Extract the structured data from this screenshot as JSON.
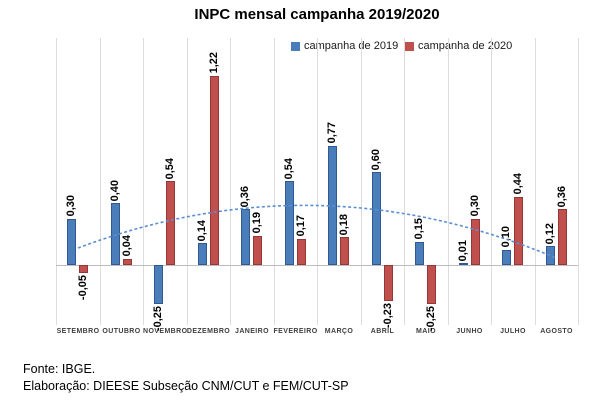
{
  "title": "INPC mensal campanha 2019/2020",
  "legend": [
    {
      "label": "campanha de 2019",
      "color": "#4a7ebb"
    },
    {
      "label": "campanha de 2020",
      "color": "#c0504d"
    }
  ],
  "footer": {
    "line1": "Fonte: IBGE.",
    "line2": "Elaboração: DIEESE Subseção CNM/CUT e FEM/CUT-SP"
  },
  "chart_data": {
    "type": "bar",
    "title": "INPC mensal campanha 2019/2020",
    "categories": [
      "SETEMBRO",
      "OUTUBRO",
      "NOVEMBRO",
      "DEZEMBRO",
      "JANEIRO",
      "FEVEREIRO",
      "MARÇO",
      "ABRIL",
      "MAIO",
      "JUNHO",
      "JULHO",
      "AGOSTO"
    ],
    "series": [
      {
        "name": "campanha de 2019",
        "color": "#4a7ebb",
        "values": [
          0.3,
          0.4,
          -0.25,
          0.14,
          0.36,
          0.54,
          0.77,
          0.6,
          0.15,
          0.01,
          0.1,
          0.12
        ],
        "labels": [
          "0,30",
          "0,40",
          "-0,25",
          "0,14",
          "0,36",
          "0,54",
          "0,77",
          "0,60",
          "0,15",
          "0,01",
          "0,10",
          "0,12"
        ]
      },
      {
        "name": "campanha de 2020",
        "color": "#c0504d",
        "values": [
          -0.05,
          0.04,
          0.54,
          1.22,
          0.19,
          0.17,
          0.18,
          -0.23,
          -0.25,
          0.3,
          0.44,
          0.36
        ],
        "labels": [
          "-0,05",
          "0,04",
          "0,54",
          "1,22",
          "0,19",
          "0,17",
          "0,18",
          "-0,23",
          "-0,25",
          "0,30",
          "0,44",
          "0,36"
        ]
      }
    ],
    "trendline": {
      "series": "campanha de 2019",
      "type": "polynomial",
      "style": "dashed",
      "color": "#5b8fd3"
    },
    "data_labels": "on, rotated vertical, comma decimal",
    "xlabel": "",
    "ylabel": "",
    "ylim": [
      -0.4,
      1.45
    ],
    "grid": "vertical category gridlines only",
    "legend_position": "top"
  }
}
